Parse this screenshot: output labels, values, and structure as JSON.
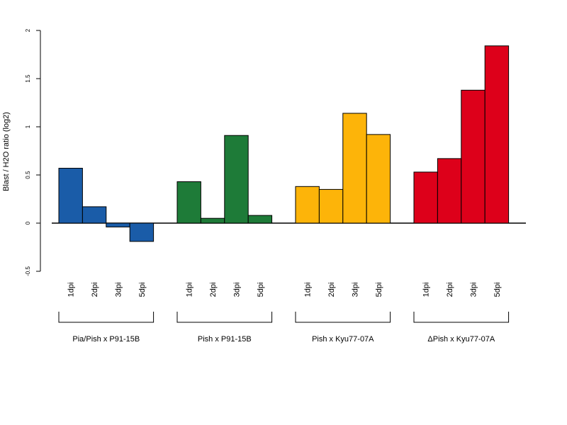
{
  "chart_data": {
    "type": "bar",
    "ylabel": "Blast / H2O ratio (log2)",
    "ylim": [
      -0.5,
      2
    ],
    "yticks": [
      -0.5,
      0,
      0.5,
      1,
      1.5,
      2
    ],
    "ytick_labels": [
      "-0.5",
      "0",
      "0.5",
      "1",
      "1.5",
      "2"
    ],
    "groups": [
      {
        "name": "Pia/Pish x P91-15B",
        "color": "#1a5ca8",
        "categories": [
          "1dpi",
          "2dpi",
          "3dpi",
          "5dpi"
        ],
        "values": [
          0.57,
          0.17,
          -0.04,
          -0.19
        ]
      },
      {
        "name": "Pish x P91-15B",
        "color": "#1e7b38",
        "categories": [
          "1dpi",
          "2dpi",
          "3dpi",
          "5dpi"
        ],
        "values": [
          0.43,
          0.05,
          0.91,
          0.08
        ]
      },
      {
        "name": "Pish x Kyu77-07A",
        "color": "#fdb409",
        "categories": [
          "1dpi",
          "2dpi",
          "3dpi",
          "5dpi"
        ],
        "values": [
          0.38,
          0.35,
          1.14,
          0.92
        ]
      },
      {
        "name": "ΔPish x Kyu77-07A",
        "color": "#dd001a",
        "categories": [
          "1dpi",
          "2dpi",
          "3dpi",
          "5dpi"
        ],
        "values": [
          0.53,
          0.67,
          1.38,
          1.84
        ]
      }
    ]
  }
}
